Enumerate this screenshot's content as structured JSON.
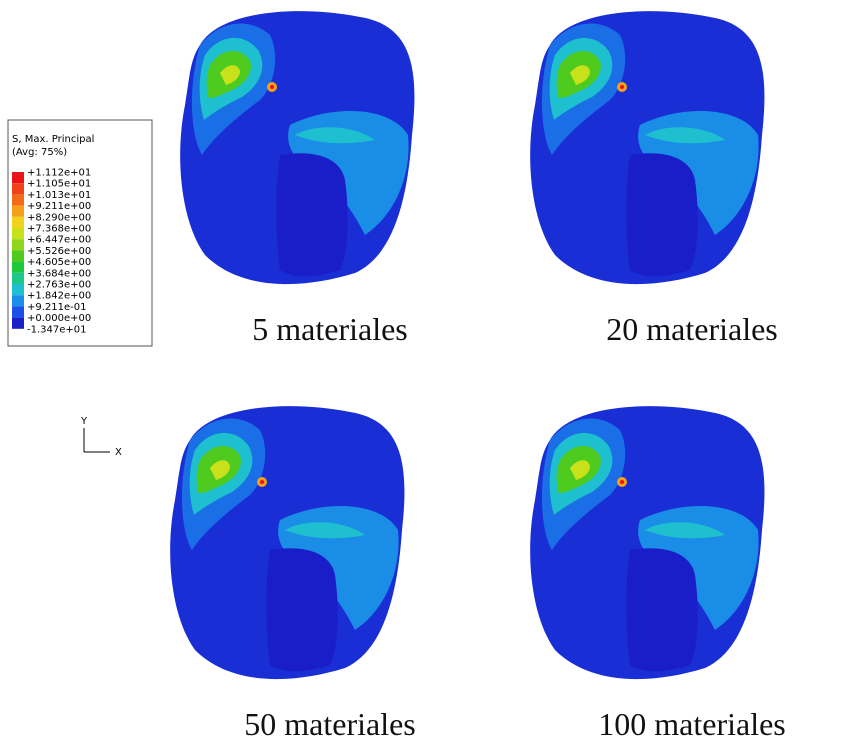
{
  "legend": {
    "title_lines": [
      "S, Max. Principal",
      "(Avg: 75%)"
    ],
    "labels": [
      "+1.112e+01",
      "+1.105e+01",
      "+1.013e+01",
      "+9.211e+00",
      "+8.290e+00",
      "+7.368e+00",
      "+6.447e+00",
      "+5.526e+00",
      "+4.605e+00",
      "+3.684e+00",
      "+2.763e+00",
      "+1.842e+00",
      "+9.211e-01",
      "+0.000e+00",
      "-1.347e+01"
    ],
    "colors": [
      "#e8141a",
      "#f0411a",
      "#f26a1a",
      "#f5a01a",
      "#f2d21a",
      "#c9e11a",
      "#8fd61a",
      "#4fca1e",
      "#1ec83c",
      "#1ec88a",
      "#1ebfcf",
      "#1a8ee6",
      "#1a50e6",
      "#1a1ec8"
    ]
  },
  "triad": {
    "y": "Y",
    "x": "X"
  },
  "panels": [
    {
      "caption": "5 materiales"
    },
    {
      "caption": "20 materiales"
    },
    {
      "caption": "50 materiales"
    },
    {
      "caption": "100 materiales"
    }
  ]
}
